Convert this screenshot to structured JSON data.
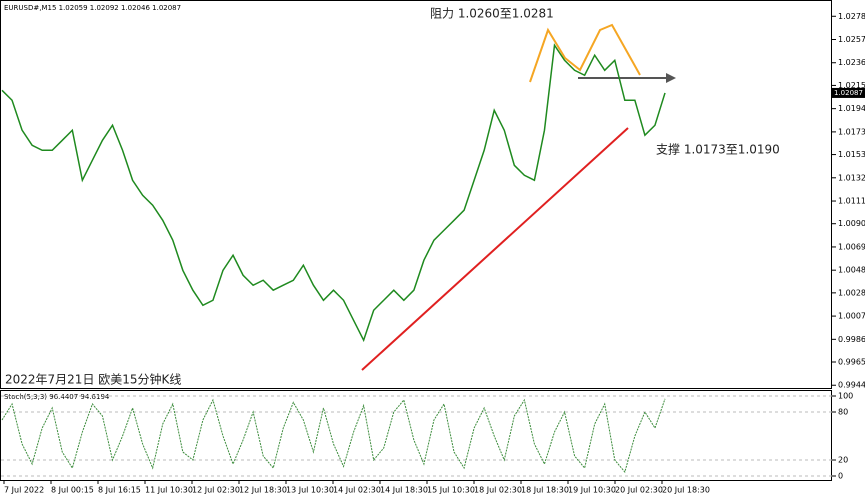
{
  "chart_data": [
    {
      "type": "line",
      "title": "EURUSD#,M15 1.02059 1.02092 1.02046 1.02087",
      "annotations": [
        "阻力 1.0260至1.0281",
        "支撑 1.0173至1.0190",
        "2022年7月21日 欧美15分钟K线"
      ],
      "xtick_labels": [
        "7 Jul 2022",
        "8 Jul 00:15",
        "8 Jul 16:15",
        "11 Jul 10:30",
        "12 Jul 02:30",
        "12 Jul 18:30",
        "13 Jul 10:30",
        "14 Jul 02:30",
        "14 Jul 18:30",
        "15 Jul 10:30",
        "18 Jul 02:30",
        "18 Jul 18:30",
        "19 Jul 10:30",
        "20 Jul 02:30",
        "20 Jul 18:30"
      ],
      "color": "#1f8a1f",
      "values": [
        1.02111,
        1.02021,
        1.0175,
        1.01614,
        1.01569,
        1.01569,
        1.01659,
        1.0175,
        1.01298,
        1.01479,
        1.01659,
        1.01795,
        1.01569,
        1.01298,
        1.01162,
        1.01072,
        1.00936,
        1.00756,
        1.00484,
        1.00304,
        1.00168,
        1.00213,
        1.00484,
        1.0062,
        1.00439,
        1.00349,
        1.00394,
        1.00304,
        1.00349,
        1.00394,
        1.0053,
        1.00349,
        1.00213,
        1.00304,
        1.00213,
        1.00032,
        0.99852,
        1.00123,
        1.00213,
        1.00304,
        1.00213,
        1.00304,
        1.00575,
        1.00756,
        1.00846,
        1.00936,
        1.01027,
        1.01298,
        1.01569,
        1.0193,
        1.0175,
        1.01433,
        1.01343,
        1.01298,
        1.0175,
        1.02518,
        1.02382,
        1.02292,
        1.02247,
        1.02428,
        1.02292,
        1.02382,
        1.02021,
        1.02021,
        1.01705,
        1.01795,
        1.02087
      ],
      "ylim": [
        0.9942,
        1.029
      ],
      "yticks": [
        {
          "value": 1.0278,
          "label": "1.02780"
        },
        {
          "value": 1.0257,
          "label": "1.02570"
        },
        {
          "value": 1.0236,
          "label": "1.02360"
        },
        1.02155,
        1.01945,
        1.01735,
        {
          "value": 1.0153,
          "label": "1.01530"
        },
        {
          "value": 1.0132,
          "label": "1.01320"
        },
        {
          "value": 1.0111,
          "label": "1.01110"
        },
        1.00905,
        1.00695,
        1.00485,
        {
          "value": 1.0028,
          "label": "1.00280"
        },
        {
          "value": 1.0007,
          "label": "1.00070"
        },
        {
          "value": 0.9986,
          "label": "0.99860"
        },
        0.99655,
        0.99445
      ]
    },
    {
      "type": "line",
      "title": "Stoch(5,3,3) 96.4407 94.6194",
      "color": "#3c8c3c",
      "values": [
        70,
        90,
        40,
        15,
        60,
        85,
        30,
        10,
        55,
        90,
        75,
        20,
        50,
        85,
        40,
        10,
        65,
        90,
        30,
        20,
        70,
        95,
        50,
        15,
        45,
        80,
        25,
        10,
        60,
        92,
        70,
        30,
        85,
        40,
        12,
        55,
        88,
        20,
        35,
        80,
        95,
        45,
        15,
        70,
        90,
        30,
        10,
        60,
        85,
        50,
        20,
        75,
        95,
        40,
        15,
        55,
        80,
        25,
        10,
        65,
        90,
        20,
        5,
        50,
        80,
        60,
        96.4407
      ],
      "ylim": [
        -5,
        105
      ],
      "yticks": [
        0,
        20,
        80,
        100
      ]
    }
  ]
}
